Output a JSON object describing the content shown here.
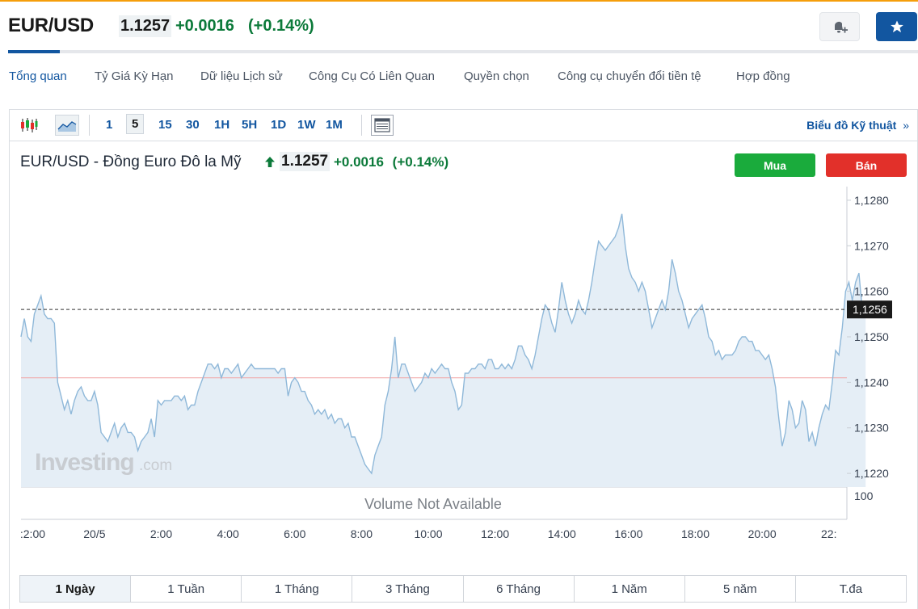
{
  "header": {
    "pair": "EUR/USD",
    "price": "1.1257",
    "change": "+0.0016",
    "change_pct": "(+0.14%)"
  },
  "colors": {
    "accent": "#1256a0",
    "up": "#0c7a3a",
    "buy": "#1aab3c",
    "sell": "#e2302a",
    "line": "#8fb8d9",
    "fill": "#e5eef6"
  },
  "nav": {
    "tabs": [
      {
        "label": "Tổng quan",
        "active": true
      },
      {
        "label": "Tỷ Giá Kỳ Hạn"
      },
      {
        "label": "Dữ liệu Lịch sử"
      },
      {
        "label": "Công Cụ Có Liên Quan"
      },
      {
        "label": "Quyền chọn"
      },
      {
        "label": "Công cụ chuyển đổi tiền tệ"
      },
      {
        "label": "Hợp đồng"
      }
    ]
  },
  "toolbar": {
    "intervals": [
      "1",
      "5",
      "15",
      "30",
      "1H",
      "5H",
      "1D",
      "1W",
      "1M"
    ],
    "selected_interval": "5",
    "tech_chart_link": "Biểu đồ Kỹ thuật",
    "link_chevron": "»"
  },
  "chart_header": {
    "title": "EUR/USD - Đồng Euro Đô la Mỹ",
    "price": "1.1257",
    "change": "+0.0016",
    "change_pct": "(+0.14%)",
    "buy_label": "Mua",
    "sell_label": "Bán"
  },
  "chart_data": {
    "type": "area",
    "ylim": [
      1.1217,
      1.1283
    ],
    "y_ticks": [
      "1,1280",
      "1,1270",
      "1,1260",
      "1,1250",
      "1,1240",
      "1,1230",
      "1,1220"
    ],
    "y_tick_values": [
      1.128,
      1.127,
      1.126,
      1.125,
      1.124,
      1.123,
      1.122
    ],
    "x_ticks": [
      ":2:00",
      "20/5",
      "2:00",
      "4:00",
      "6:00",
      "8:00",
      "10:00",
      "12:00",
      "14:00",
      "16:00",
      "18:00",
      "20:00",
      "22:"
    ],
    "x_tick_hours": [
      -0.35,
      1.5,
      3.5,
      5.5,
      7.5,
      9.5,
      11.5,
      13.5,
      15.5,
      17.5,
      19.5,
      21.5,
      23.5
    ],
    "current_value": 1.1256,
    "current_label": "1,1256",
    "reference_value": 1.1241,
    "watermark_main": "Investing",
    "watermark_suffix": ".com",
    "volume_label": "Volume Not Available",
    "volume_tick": "100",
    "series": [
      {
        "hours_start": -0.7,
        "hours_step": 0.1,
        "values": [
          1.125,
          1.1254,
          1.125,
          1.1249,
          1.1255,
          1.1257,
          1.1259,
          1.1255,
          1.1254,
          1.1254,
          1.1253,
          1.124,
          1.1237,
          1.1234,
          1.1236,
          1.1233,
          1.1236,
          1.1238,
          1.1239,
          1.1237,
          1.1236,
          1.1236,
          1.1238,
          1.1235,
          1.1229,
          1.1228,
          1.1227,
          1.1229,
          1.1231,
          1.1228,
          1.123,
          1.1231,
          1.1229,
          1.1229,
          1.1228,
          1.1225,
          1.1227,
          1.1228,
          1.1229,
          1.1232,
          1.1228,
          1.1236,
          1.1235,
          1.1236,
          1.1236,
          1.1236,
          1.1237,
          1.1237,
          1.1236,
          1.1237,
          1.1234,
          1.1235,
          1.1235,
          1.1238,
          1.124,
          1.1242,
          1.1244,
          1.1244,
          1.1243,
          1.1244,
          1.1241,
          1.1243,
          1.1243,
          1.1242,
          1.1243,
          1.1244,
          1.1241,
          1.1242,
          1.1243,
          1.1244,
          1.1243,
          1.1243,
          1.1243,
          1.1243,
          1.1243,
          1.1243,
          1.1243,
          1.1242,
          1.1243,
          1.1243,
          1.1237,
          1.124,
          1.1241,
          1.124,
          1.1238,
          1.1238,
          1.1236,
          1.1235,
          1.1233,
          1.1234,
          1.1233,
          1.1234,
          1.1232,
          1.1233,
          1.1231,
          1.1232,
          1.1232,
          1.123,
          1.1231,
          1.1228,
          1.1228,
          1.1226,
          1.1224,
          1.1222,
          1.1221,
          1.122,
          1.1224,
          1.1226,
          1.1228,
          1.1235,
          1.1238,
          1.1243,
          1.125,
          1.1241,
          1.1244,
          1.1244,
          1.1242,
          1.124,
          1.1238,
          1.1239,
          1.124,
          1.1242,
          1.1241,
          1.1243,
          1.1242,
          1.1243,
          1.1244,
          1.1243,
          1.1243,
          1.124,
          1.1238,
          1.1234,
          1.1235,
          1.1242,
          1.1242,
          1.1243,
          1.1243,
          1.1244,
          1.1244,
          1.1243,
          1.1245,
          1.1245,
          1.1243,
          1.1243,
          1.1244,
          1.1243,
          1.1244,
          1.1243,
          1.1245,
          1.1248,
          1.1248,
          1.1246,
          1.1245,
          1.1243,
          1.1246,
          1.125,
          1.1254,
          1.1257,
          1.1256,
          1.1253,
          1.1251,
          1.1256,
          1.1262,
          1.1258,
          1.1255,
          1.1253,
          1.1255,
          1.1258,
          1.1256,
          1.1255,
          1.1258,
          1.1262,
          1.1267,
          1.1271,
          1.127,
          1.1269,
          1.127,
          1.1271,
          1.1272,
          1.1274,
          1.1277,
          1.127,
          1.1265,
          1.1263,
          1.1262,
          1.126,
          1.1262,
          1.126,
          1.1256,
          1.1252,
          1.1254,
          1.1256,
          1.1258,
          1.1256,
          1.126,
          1.1267,
          1.1264,
          1.126,
          1.1258,
          1.1255,
          1.1252,
          1.1254,
          1.1255,
          1.1256,
          1.1257,
          1.1254,
          1.125,
          1.1249,
          1.1246,
          1.1247,
          1.1245,
          1.1246,
          1.1246,
          1.1246,
          1.1247,
          1.1249,
          1.125,
          1.125,
          1.1249,
          1.1249,
          1.1247,
          1.1247,
          1.1246,
          1.1245,
          1.1246,
          1.1243,
          1.1239,
          1.1232,
          1.1226,
          1.1229,
          1.1236,
          1.1234,
          1.123,
          1.1231,
          1.1236,
          1.1234,
          1.1227,
          1.1229,
          1.1226,
          1.123,
          1.1233,
          1.1235,
          1.1234,
          1.124,
          1.1247,
          1.1246,
          1.1252,
          1.126,
          1.1262,
          1.1258,
          1.1262,
          1.1264,
          1.1256,
          1.1255
        ]
      }
    ]
  },
  "ranges": {
    "items": [
      "1 Ngày",
      "1 Tuần",
      "1 Tháng",
      "3 Tháng",
      "6 Tháng",
      "1 Năm",
      "5 năm",
      "T.đa"
    ],
    "active": "1 Ngày"
  }
}
